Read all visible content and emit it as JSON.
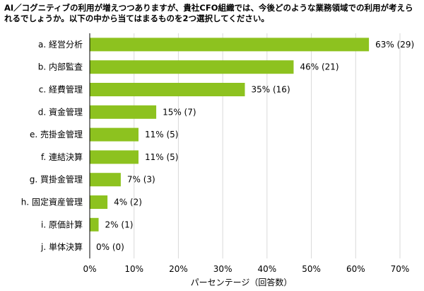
{
  "question": "AI／コグニティブの利用が増えつつありますが、貴社CFO組織では、今後どのような業務領域での利用が考えられるでしょうか。以下の中から当てはまるものを2つ選択してください。",
  "colors": {
    "bar": "#8dc21f",
    "grid": "#d9d9d9",
    "axis": "#000000"
  },
  "chart_data": {
    "type": "bar",
    "orientation": "horizontal",
    "categories": [
      "a. 経営分析",
      "b. 内部監査",
      "c. 経費管理",
      "d. 資金管理",
      "e. 売掛金管理",
      "f. 連結決算",
      "g. 買掛金管理",
      "h. 固定資産管理",
      "i. 原価計算",
      "j. 単体決算"
    ],
    "values": [
      63,
      46,
      35,
      15,
      11,
      11,
      7,
      4,
      2,
      0
    ],
    "data_labels": [
      "63% (29)",
      "46% (21)",
      "35% (16)",
      "15% (7)",
      "11% (5)",
      "11% (5)",
      "7% (3)",
      "4% (2)",
      "2% (1)",
      "0% (0)"
    ],
    "xlabel": "パーセンテージ（回答数）",
    "xlim": [
      0,
      70
    ],
    "x_ticks": [
      "0%",
      "10%",
      "20%",
      "30%",
      "40%",
      "50%",
      "60%",
      "70%"
    ],
    "grid": true
  }
}
